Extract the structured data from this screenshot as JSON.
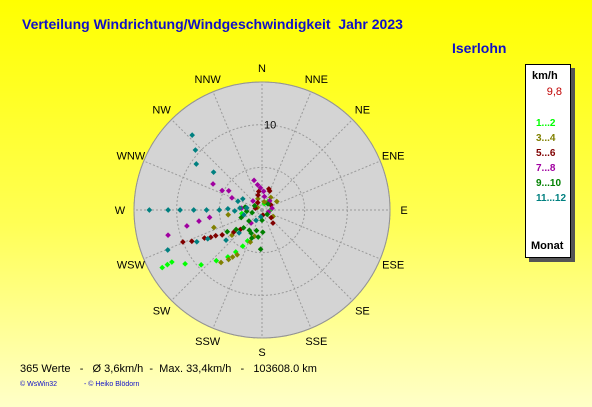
{
  "title": "Verteilung Windrichtung/Windgeschwindigkeit  Jahr 2023",
  "location": "Iserlohn",
  "legend": {
    "unit": "km/h",
    "max_value": "9,8",
    "footer": "Monat",
    "items": [
      {
        "label": "1...2",
        "color": "#00ff00"
      },
      {
        "label": "3...4",
        "color": "#808000"
      },
      {
        "label": "5...6",
        "color": "#800000"
      },
      {
        "label": "7...8",
        "color": "#a000a0"
      },
      {
        "label": "9...10",
        "color": "#008000"
      },
      {
        "label": "11...12",
        "color": "#008080"
      }
    ]
  },
  "stats": "365 Werte   -   Ø 3,6km/h  -  Max. 33,4km/h   -   103608.0 km",
  "credits": {
    "left": "© WsWin32",
    "right": "- © Heiko Blödorn"
  },
  "colors": {
    "title": "#1010c8",
    "grid_fill": "#d4d4d4",
    "grid_line": "#808080",
    "background": "#ffff00"
  },
  "chart_data": {
    "type": "scatter",
    "subtype": "wind-rose",
    "directions": [
      "N",
      "NNE",
      "NE",
      "ENE",
      "E",
      "ESE",
      "SE",
      "SSE",
      "S",
      "SSW",
      "SW",
      "WSW",
      "W",
      "WNW",
      "NW",
      "NNW"
    ],
    "radial_tick": "10",
    "rmax": 15,
    "unit": "km/h",
    "series": [
      {
        "name": "1...2",
        "color": "#00ff00",
        "points": [
          [
            240,
            13.5
          ],
          [
            240,
            12.8
          ],
          [
            240,
            12.2
          ],
          [
            235,
            11.0
          ],
          [
            228,
            9.6
          ],
          [
            222,
            8.0
          ],
          [
            216,
            6.8
          ],
          [
            212,
            5.8
          ],
          [
            208,
            4.8
          ],
          [
            205,
            4.0
          ],
          [
            260,
            2.4
          ],
          [
            35,
            1.2
          ],
          [
            90,
            1.0
          ],
          [
            20,
            0.8
          ]
        ]
      },
      {
        "name": "3...4",
        "color": "#808000",
        "points": [
          [
            218,
            7.8
          ],
          [
            214,
            7.0
          ],
          [
            212,
            6.5
          ],
          [
            209,
            6.0
          ],
          [
            200,
            4.0
          ],
          [
            196,
            3.2
          ],
          [
            230,
            4.6
          ],
          [
            250,
            6.0
          ],
          [
            262,
            4.0
          ],
          [
            120,
            1.5
          ],
          [
            40,
            1.0
          ],
          [
            60,
            2.0
          ],
          [
            35,
            1.8
          ],
          [
            340,
            1.4
          ],
          [
            15,
            1.0
          ],
          [
            300,
            0.6
          ]
        ]
      },
      {
        "name": "5...6",
        "color": "#800000",
        "points": [
          [
            248,
            10.0
          ],
          [
            246,
            9.0
          ],
          [
            244,
            7.5
          ],
          [
            242,
            6.8
          ],
          [
            241,
            6.2
          ],
          [
            238,
            5.5
          ],
          [
            232,
            4.2
          ],
          [
            228,
            3.4
          ],
          [
            22,
            2.4
          ],
          [
            18,
            2.6
          ],
          [
            350,
            2.2
          ],
          [
            345,
            1.8
          ],
          [
            130,
            1.4
          ],
          [
            140,
            2.0
          ],
          [
            60,
            1.2
          ],
          [
            330,
            1.0
          ],
          [
            285,
            0.8
          ],
          [
            170,
            0.6
          ]
        ]
      },
      {
        "name": "7...8",
        "color": "#a000a0",
        "points": [
          [
            255,
            11.4
          ],
          [
            258,
            9.0
          ],
          [
            260,
            7.5
          ],
          [
            262,
            6.2
          ],
          [
            275,
            2.4
          ],
          [
            292,
            3.8
          ],
          [
            296,
            5.2
          ],
          [
            298,
            6.5
          ],
          [
            300,
            4.5
          ],
          [
            345,
            3.6
          ],
          [
            350,
            3.0
          ],
          [
            356,
            2.6
          ],
          [
            5,
            2.2
          ],
          [
            10,
            1.6
          ],
          [
            40,
            1.4
          ],
          [
            80,
            1.2
          ],
          [
            105,
            0.8
          ],
          [
            220,
            2.0
          ],
          [
            315,
            1.5
          ]
        ]
      },
      {
        "name": "9...10",
        "color": "#008000",
        "points": [
          [
            238,
            4.8
          ],
          [
            233,
            3.8
          ],
          [
            226,
            3.0
          ],
          [
            212,
            2.8
          ],
          [
            205,
            3.0
          ],
          [
            200,
            3.5
          ],
          [
            195,
            2.5
          ],
          [
            188,
            3.2
          ],
          [
            182,
            4.6
          ],
          [
            178,
            2.6
          ],
          [
            180,
            1.2
          ],
          [
            230,
            2.0
          ],
          [
            250,
            2.6
          ],
          [
            265,
            1.8
          ],
          [
            280,
            2.0
          ],
          [
            255,
            1.2
          ],
          [
            45,
            1.0
          ],
          [
            130,
            0.8
          ],
          [
            300,
            1.0
          ]
        ]
      },
      {
        "name": "11...12",
        "color": "#008080",
        "points": [
          [
            270,
            13.2
          ],
          [
            270,
            11.0
          ],
          [
            270,
            9.6
          ],
          [
            270,
            8.0
          ],
          [
            270,
            6.5
          ],
          [
            270,
            5.0
          ],
          [
            272,
            4.0
          ],
          [
            268,
            3.2
          ],
          [
            275,
            2.6
          ],
          [
            278,
            1.8
          ],
          [
            247,
            12.0
          ],
          [
            244,
            8.5
          ],
          [
            242,
            7.2
          ],
          [
            230,
            5.5
          ],
          [
            225,
            3.8
          ],
          [
            305,
            9.4
          ],
          [
            308,
            7.2
          ],
          [
            312,
            10.5
          ],
          [
            317,
            12.0
          ],
          [
            290,
            3.0
          ],
          [
            300,
            2.6
          ],
          [
            255,
            2.2
          ],
          [
            210,
            1.4
          ],
          [
            190,
            0.8
          ]
        ]
      }
    ]
  }
}
